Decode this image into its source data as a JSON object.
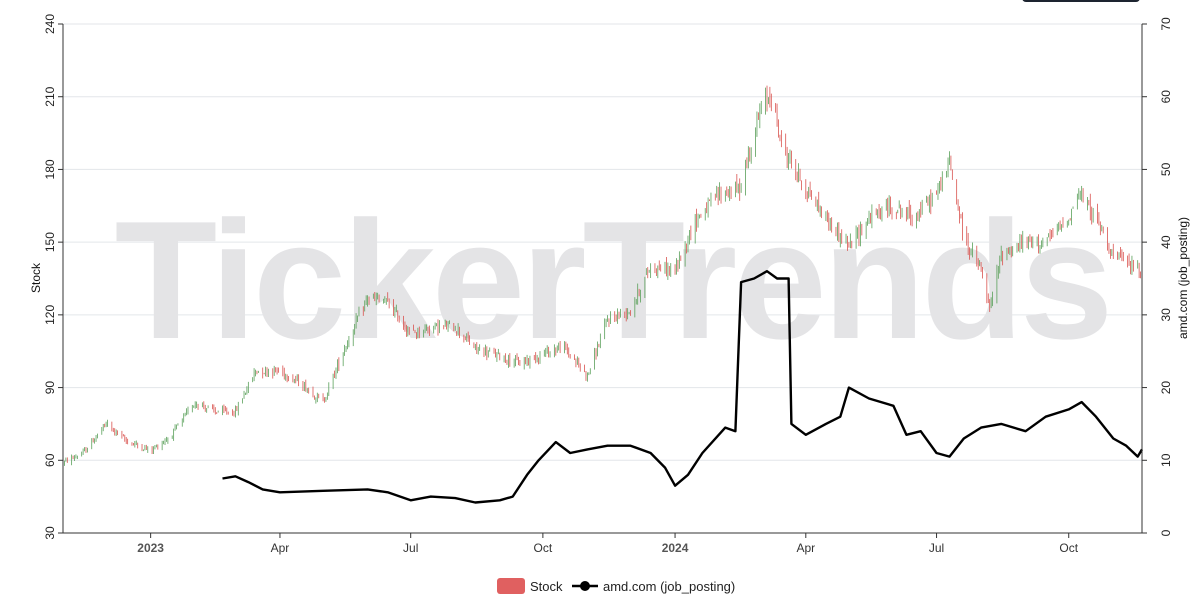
{
  "watermark": "TickerTrends",
  "chart_data": {
    "type": "line",
    "title": "",
    "y_left": {
      "label": "Stock",
      "ticks": [
        30,
        60,
        90,
        120,
        150,
        180,
        210,
        240
      ],
      "range": [
        30,
        240
      ]
    },
    "y_right": {
      "label": "amd.com  (job_posting)",
      "ticks": [
        0,
        10,
        20,
        30,
        40,
        50,
        60,
        70
      ],
      "range": [
        0,
        70
      ]
    },
    "x": {
      "range": [
        "2022-11-01",
        "2024-11-21"
      ],
      "ticks": [
        {
          "date": "2023-01-01",
          "label": "2023",
          "bold": true
        },
        {
          "date": "2023-04-01",
          "label": "Apr",
          "bold": false
        },
        {
          "date": "2023-07-01",
          "label": "Jul",
          "bold": false
        },
        {
          "date": "2023-10-01",
          "label": "Oct",
          "bold": false
        },
        {
          "date": "2024-01-01",
          "label": "2024",
          "bold": true
        },
        {
          "date": "2024-04-01",
          "label": "Apr",
          "bold": false
        },
        {
          "date": "2024-07-01",
          "label": "Jul",
          "bold": false
        },
        {
          "date": "2024-10-01",
          "label": "Oct",
          "bold": false
        }
      ]
    },
    "grid": "horizontal",
    "legend": {
      "position": "bottom-center",
      "items": [
        {
          "name": "Stock",
          "color": "#e06060",
          "marker": "rect"
        },
        {
          "name": "amd.com  (job_posting)",
          "color": "#000000",
          "marker": "line-dot"
        }
      ]
    },
    "colors": {
      "up": "#5aa05a",
      "down": "#d9534f",
      "job_line": "#000000"
    },
    "series": [
      {
        "name": "Stock",
        "kind": "candlestick",
        "axis": "left",
        "approx_close": [
          [
            "2022-11-01",
            59
          ],
          [
            "2022-11-15",
            63
          ],
          [
            "2022-12-01",
            75
          ],
          [
            "2022-12-15",
            68
          ],
          [
            "2023-01-01",
            64
          ],
          [
            "2023-01-15",
            70
          ],
          [
            "2023-02-01",
            84
          ],
          [
            "2023-02-15",
            80
          ],
          [
            "2023-03-01",
            80
          ],
          [
            "2023-03-15",
            97
          ],
          [
            "2023-04-01",
            97
          ],
          [
            "2023-04-15",
            92
          ],
          [
            "2023-05-01",
            84
          ],
          [
            "2023-05-15",
            105
          ],
          [
            "2023-06-01",
            127
          ],
          [
            "2023-06-15",
            125
          ],
          [
            "2023-07-01",
            112
          ],
          [
            "2023-07-15",
            115
          ],
          [
            "2023-08-01",
            115
          ],
          [
            "2023-08-15",
            106
          ],
          [
            "2023-09-01",
            103
          ],
          [
            "2023-09-15",
            100
          ],
          [
            "2023-10-01",
            104
          ],
          [
            "2023-10-15",
            107
          ],
          [
            "2023-11-01",
            95
          ],
          [
            "2023-11-15",
            118
          ],
          [
            "2023-12-01",
            122
          ],
          [
            "2023-12-15",
            140
          ],
          [
            "2024-01-01",
            138
          ],
          [
            "2024-01-15",
            159
          ],
          [
            "2024-02-01",
            170
          ],
          [
            "2024-02-15",
            172
          ],
          [
            "2024-03-01",
            205
          ],
          [
            "2024-03-08",
            211
          ],
          [
            "2024-03-15",
            190
          ],
          [
            "2024-04-01",
            172
          ],
          [
            "2024-04-15",
            160
          ],
          [
            "2024-05-01",
            148
          ],
          [
            "2024-05-15",
            160
          ],
          [
            "2024-06-01",
            165
          ],
          [
            "2024-06-15",
            160
          ],
          [
            "2024-07-01",
            170
          ],
          [
            "2024-07-10",
            183
          ],
          [
            "2024-07-20",
            152
          ],
          [
            "2024-08-01",
            138
          ],
          [
            "2024-08-07",
            122
          ],
          [
            "2024-08-15",
            145
          ],
          [
            "2024-09-01",
            150
          ],
          [
            "2024-09-15",
            150
          ],
          [
            "2024-10-01",
            160
          ],
          [
            "2024-10-08",
            170
          ],
          [
            "2024-10-20",
            160
          ],
          [
            "2024-11-01",
            145
          ],
          [
            "2024-11-15",
            140
          ],
          [
            "2024-11-21",
            138
          ]
        ]
      },
      {
        "name": "amd.com  (job_posting)",
        "kind": "line",
        "axis": "right",
        "points": [
          [
            "2023-02-20",
            7.5
          ],
          [
            "2023-03-01",
            7.8
          ],
          [
            "2023-03-10",
            7.0
          ],
          [
            "2023-03-20",
            6.0
          ],
          [
            "2023-04-01",
            5.6
          ],
          [
            "2023-05-01",
            5.8
          ],
          [
            "2023-06-01",
            6.0
          ],
          [
            "2023-06-15",
            5.6
          ],
          [
            "2023-07-01",
            4.5
          ],
          [
            "2023-07-15",
            5.0
          ],
          [
            "2023-08-01",
            4.8
          ],
          [
            "2023-08-15",
            4.2
          ],
          [
            "2023-09-01",
            4.5
          ],
          [
            "2023-09-10",
            5.0
          ],
          [
            "2023-09-20",
            8.0
          ],
          [
            "2023-09-28",
            10.0
          ],
          [
            "2023-10-10",
            12.5
          ],
          [
            "2023-10-20",
            11.0
          ],
          [
            "2023-11-01",
            11.5
          ],
          [
            "2023-11-15",
            12.0
          ],
          [
            "2023-12-01",
            12.0
          ],
          [
            "2023-12-15",
            11.0
          ],
          [
            "2023-12-25",
            9.0
          ],
          [
            "2024-01-01",
            6.5
          ],
          [
            "2024-01-10",
            8.0
          ],
          [
            "2024-01-20",
            11.0
          ],
          [
            "2024-02-05",
            14.5
          ],
          [
            "2024-02-12",
            14.0
          ],
          [
            "2024-02-16",
            34.5
          ],
          [
            "2024-02-25",
            35.0
          ],
          [
            "2024-03-05",
            36.0
          ],
          [
            "2024-03-12",
            35.0
          ],
          [
            "2024-03-20",
            35.0
          ],
          [
            "2024-03-22",
            15.0
          ],
          [
            "2024-04-01",
            13.5
          ],
          [
            "2024-04-15",
            15.0
          ],
          [
            "2024-04-25",
            16.0
          ],
          [
            "2024-05-01",
            20.0
          ],
          [
            "2024-05-15",
            18.5
          ],
          [
            "2024-06-01",
            17.5
          ],
          [
            "2024-06-10",
            13.5
          ],
          [
            "2024-06-20",
            14.0
          ],
          [
            "2024-07-01",
            11.0
          ],
          [
            "2024-07-10",
            10.5
          ],
          [
            "2024-07-20",
            13.0
          ],
          [
            "2024-08-01",
            14.5
          ],
          [
            "2024-08-15",
            15.0
          ],
          [
            "2024-09-01",
            14.0
          ],
          [
            "2024-09-15",
            16.0
          ],
          [
            "2024-10-01",
            17.0
          ],
          [
            "2024-10-10",
            18.0
          ],
          [
            "2024-10-20",
            16.0
          ],
          [
            "2024-11-01",
            13.0
          ],
          [
            "2024-11-10",
            12.0
          ],
          [
            "2024-11-18",
            10.5
          ],
          [
            "2024-11-21",
            11.5
          ]
        ]
      }
    ]
  }
}
